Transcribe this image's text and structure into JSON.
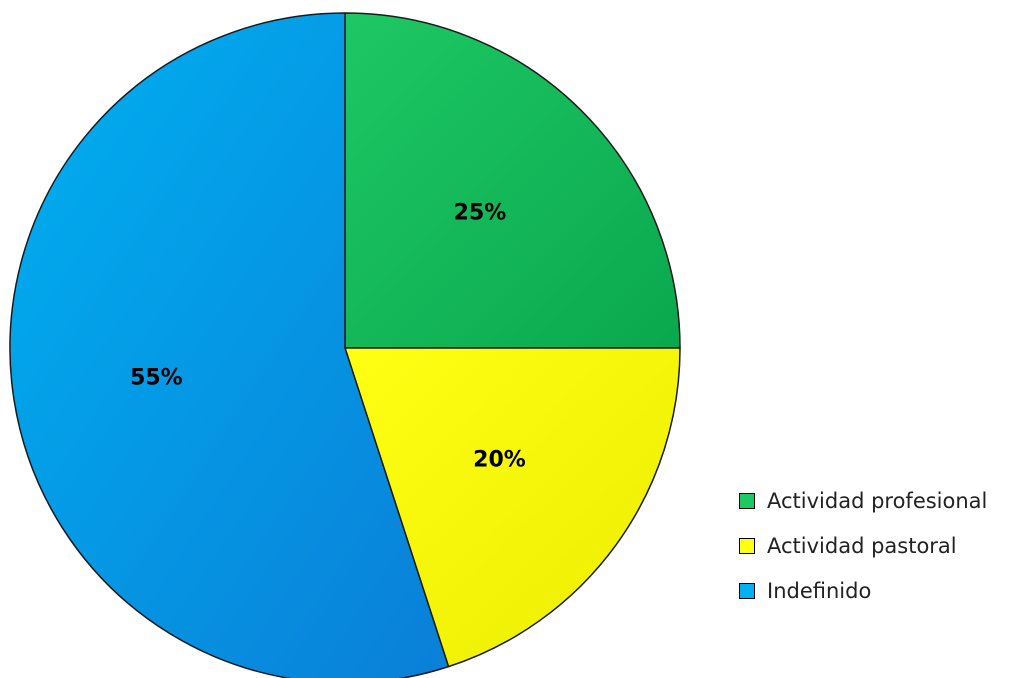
{
  "chart_data": {
    "type": "pie",
    "title": "",
    "slices": [
      {
        "label": "Actividad profesional",
        "value": 25,
        "display": "25%",
        "color": "#1ec864",
        "color_dark": "#0aa84e"
      },
      {
        "label": "Actividad pastoral",
        "value": 20,
        "display": "20%",
        "color": "#ffff14",
        "color_dark": "#ecec00"
      },
      {
        "label": "Indefinido",
        "value": 55,
        "display": "55%",
        "color": "#00b0f0",
        "color_dark": "#0a7fd8"
      }
    ],
    "start_angle": "12 o'clock",
    "direction": "clockwise",
    "legend": {
      "position": "bottom-right"
    }
  }
}
